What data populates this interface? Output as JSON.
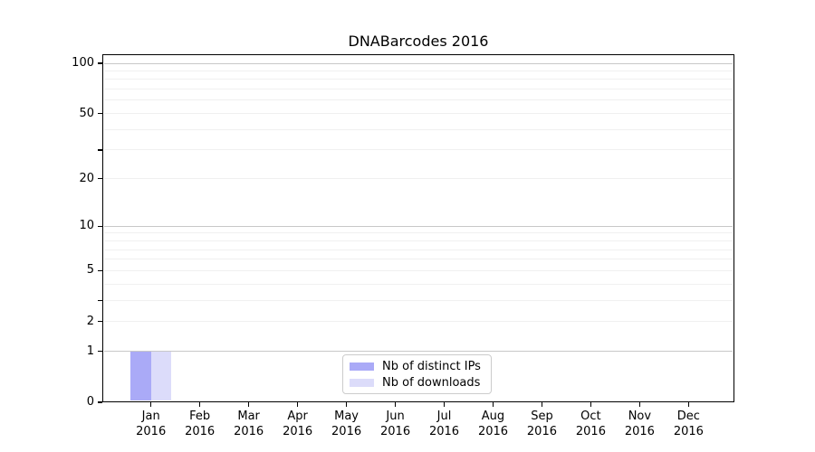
{
  "chart_data": {
    "type": "bar",
    "title": "DNABarcodes 2016",
    "categories": [
      "Jan",
      "Feb",
      "Mar",
      "Apr",
      "May",
      "Jun",
      "Jul",
      "Aug",
      "Sep",
      "Oct",
      "Nov",
      "Dec"
    ],
    "category_sublabel": "2016",
    "series": [
      {
        "name": "Nb of distinct IPs",
        "color": "#aaaaf7",
        "values": [
          1,
          0,
          0,
          0,
          0,
          0,
          0,
          0,
          0,
          0,
          0,
          0
        ]
      },
      {
        "name": "Nb of downloads",
        "color": "#dcdcfa",
        "values": [
          1,
          0,
          0,
          0,
          0,
          0,
          0,
          0,
          0,
          0,
          0,
          0
        ]
      }
    ],
    "yaxis": {
      "scale": "log1p",
      "tick_values": [
        0,
        1,
        2,
        5,
        10,
        20,
        50,
        100
      ],
      "tick_labels": [
        "0",
        "1",
        "2",
        "5",
        "10",
        "20",
        "50",
        "100"
      ],
      "minor_tick_values": [
        3,
        30
      ],
      "major_gridlines": [
        1,
        10,
        100
      ],
      "minor_gridlines": [
        2,
        3,
        4,
        5,
        6,
        7,
        8,
        9,
        20,
        30,
        40,
        50,
        60,
        70,
        80,
        90
      ],
      "range": [
        0,
        100
      ]
    },
    "legend": {
      "position": "bottom-center"
    },
    "colors": {
      "spine": "#000000",
      "major_grid": "#c8c8c8",
      "minor_grid": "#f0f0f0",
      "bar_distinct_ips": "#aaaaf7",
      "bar_downloads": "#dcdcfa"
    }
  }
}
